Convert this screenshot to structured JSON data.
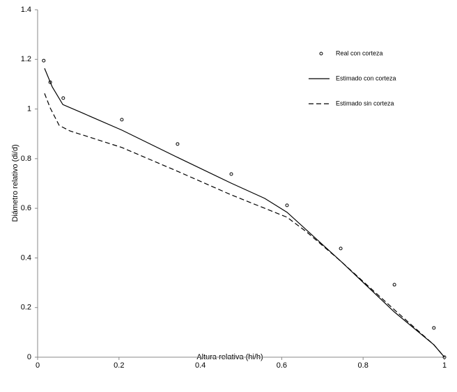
{
  "chart_data": {
    "type": "line",
    "x_label": "Altura relativa (hi/h)",
    "y_label": "Diámetro relativo (di/d)",
    "xlim": [
      0,
      1
    ],
    "xticks": [
      0,
      0.2,
      0.4,
      0.6,
      0.8,
      1
    ],
    "ylim": [
      0,
      1.4
    ],
    "yticks": [
      0,
      0.2,
      0.4,
      0.6,
      0.8,
      1,
      1.2,
      1.4
    ],
    "grid": false,
    "legend": "top-right",
    "series": [
      {
        "name": "Real con corteza",
        "type": "scatter",
        "color": "#000000",
        "x": [
          0.015,
          0.031,
          0.063,
          0.207,
          0.344,
          0.476,
          0.613,
          0.745,
          0.877,
          0.974,
          1
        ],
        "values": [
          1.195,
          1.108,
          1.044,
          0.957,
          0.859,
          0.738,
          0.612,
          0.438,
          0.292,
          0.118,
          0
        ]
      },
      {
        "name": "Estimado con corteza",
        "type": "line",
        "dash": false,
        "color": "#000000",
        "x": [
          0.017,
          0.036,
          0.062,
          0.113,
          0.207,
          0.344,
          0.476,
          0.558,
          0.613,
          0.745,
          0.877,
          0.974,
          1
        ],
        "values": [
          1.164,
          1.089,
          1.018,
          0.982,
          0.915,
          0.805,
          0.701,
          0.64,
          0.584,
          0.387,
          0.182,
          0.05,
          0
        ]
      },
      {
        "name": "Estimado sin corteza",
        "type": "line",
        "dash": true,
        "color": "#000000",
        "x": [
          0.017,
          0.031,
          0.053,
          0.079,
          0.207,
          0.344,
          0.476,
          0.613,
          0.661,
          0.745,
          0.877,
          0.974,
          1
        ],
        "values": [
          1.063,
          1.004,
          0.934,
          0.912,
          0.845,
          0.749,
          0.654,
          0.564,
          0.505,
          0.387,
          0.191,
          0.05,
          0
        ]
      }
    ]
  }
}
